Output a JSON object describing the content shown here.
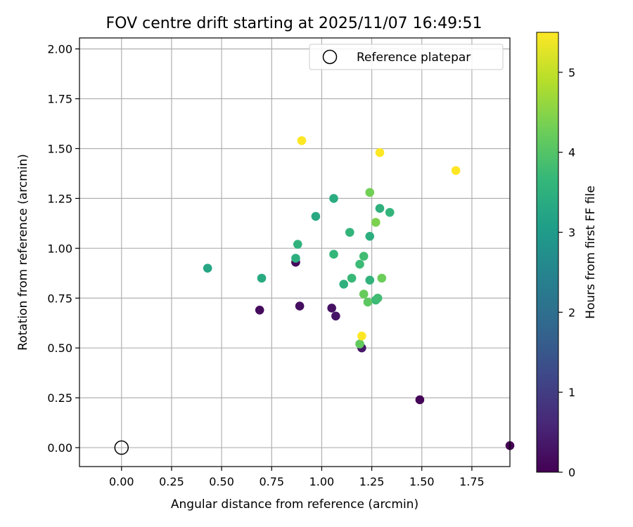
{
  "chart_data": {
    "type": "scatter",
    "title": "FOV centre drift starting at 2025/11/07 16:49:51",
    "xlabel": "Angular distance from reference (arcmin)",
    "ylabel": "Rotation from reference (arcmin)",
    "xlim": [
      -0.21,
      1.94
    ],
    "ylim": [
      -0.095,
      2.055
    ],
    "grid": true,
    "x_ticks": [
      "0.00",
      "0.25",
      "0.50",
      "0.75",
      "1.00",
      "1.25",
      "1.50",
      "1.75"
    ],
    "y_ticks": [
      "0.00",
      "0.25",
      "0.50",
      "0.75",
      "1.00",
      "1.25",
      "1.50",
      "1.75",
      "2.00"
    ],
    "colormap": "viridis",
    "colorbar": {
      "label": "Hours from first FF file",
      "range": [
        0,
        5.5
      ],
      "ticks": [
        "0",
        "1",
        "2",
        "3",
        "4",
        "5"
      ]
    },
    "legend": {
      "position": "top-right",
      "entries": [
        "Reference platepar"
      ]
    },
    "reference_point": {
      "x": 0.0,
      "y": 0.0,
      "label": "Reference platepar"
    },
    "points": [
      {
        "x": 1.94,
        "y": 0.01,
        "c": 0.0
      },
      {
        "x": 1.49,
        "y": 0.24,
        "c": 0.05
      },
      {
        "x": 0.87,
        "y": 0.93,
        "c": 0.1
      },
      {
        "x": 0.69,
        "y": 0.69,
        "c": 0.15
      },
      {
        "x": 0.89,
        "y": 0.71,
        "c": 0.2
      },
      {
        "x": 1.05,
        "y": 0.7,
        "c": 0.25
      },
      {
        "x": 1.07,
        "y": 0.66,
        "c": 0.3
      },
      {
        "x": 1.2,
        "y": 0.5,
        "c": 0.35
      },
      {
        "x": 0.43,
        "y": 0.9,
        "c": 3.25
      },
      {
        "x": 0.7,
        "y": 0.85,
        "c": 3.35
      },
      {
        "x": 0.87,
        "y": 0.95,
        "c": 3.45
      },
      {
        "x": 0.88,
        "y": 1.02,
        "c": 3.55
      },
      {
        "x": 0.97,
        "y": 1.16,
        "c": 3.3
      },
      {
        "x": 1.06,
        "y": 1.25,
        "c": 3.4
      },
      {
        "x": 1.06,
        "y": 0.97,
        "c": 3.65
      },
      {
        "x": 1.11,
        "y": 0.82,
        "c": 3.5
      },
      {
        "x": 1.14,
        "y": 1.08,
        "c": 3.6
      },
      {
        "x": 1.15,
        "y": 0.85,
        "c": 3.7
      },
      {
        "x": 1.19,
        "y": 0.92,
        "c": 3.75
      },
      {
        "x": 1.21,
        "y": 0.96,
        "c": 3.8
      },
      {
        "x": 1.24,
        "y": 0.84,
        "c": 3.55
      },
      {
        "x": 1.24,
        "y": 1.06,
        "c": 3.45
      },
      {
        "x": 1.29,
        "y": 1.2,
        "c": 3.5
      },
      {
        "x": 1.34,
        "y": 1.18,
        "c": 3.6
      },
      {
        "x": 1.27,
        "y": 0.74,
        "c": 3.7
      },
      {
        "x": 1.28,
        "y": 0.75,
        "c": 3.8
      },
      {
        "x": 1.23,
        "y": 0.73,
        "c": 4.1
      },
      {
        "x": 1.21,
        "y": 0.77,
        "c": 4.2
      },
      {
        "x": 1.19,
        "y": 0.52,
        "c": 4.15
      },
      {
        "x": 1.3,
        "y": 0.85,
        "c": 4.25
      },
      {
        "x": 1.24,
        "y": 1.28,
        "c": 4.3
      },
      {
        "x": 1.27,
        "y": 1.13,
        "c": 4.4
      },
      {
        "x": 1.2,
        "y": 0.56,
        "c": 5.5
      },
      {
        "x": 0.9,
        "y": 1.54,
        "c": 5.5
      },
      {
        "x": 1.29,
        "y": 1.48,
        "c": 5.5
      },
      {
        "x": 1.67,
        "y": 1.39,
        "c": 5.5
      }
    ],
    "colors": {
      "grid": "#b0b0b0",
      "axis": "#000000",
      "viridis": [
        "#440154",
        "#482878",
        "#3e4989",
        "#31688e",
        "#26828e",
        "#1f9e89",
        "#35b779",
        "#6ece58",
        "#b5de2b",
        "#fde725"
      ]
    }
  }
}
